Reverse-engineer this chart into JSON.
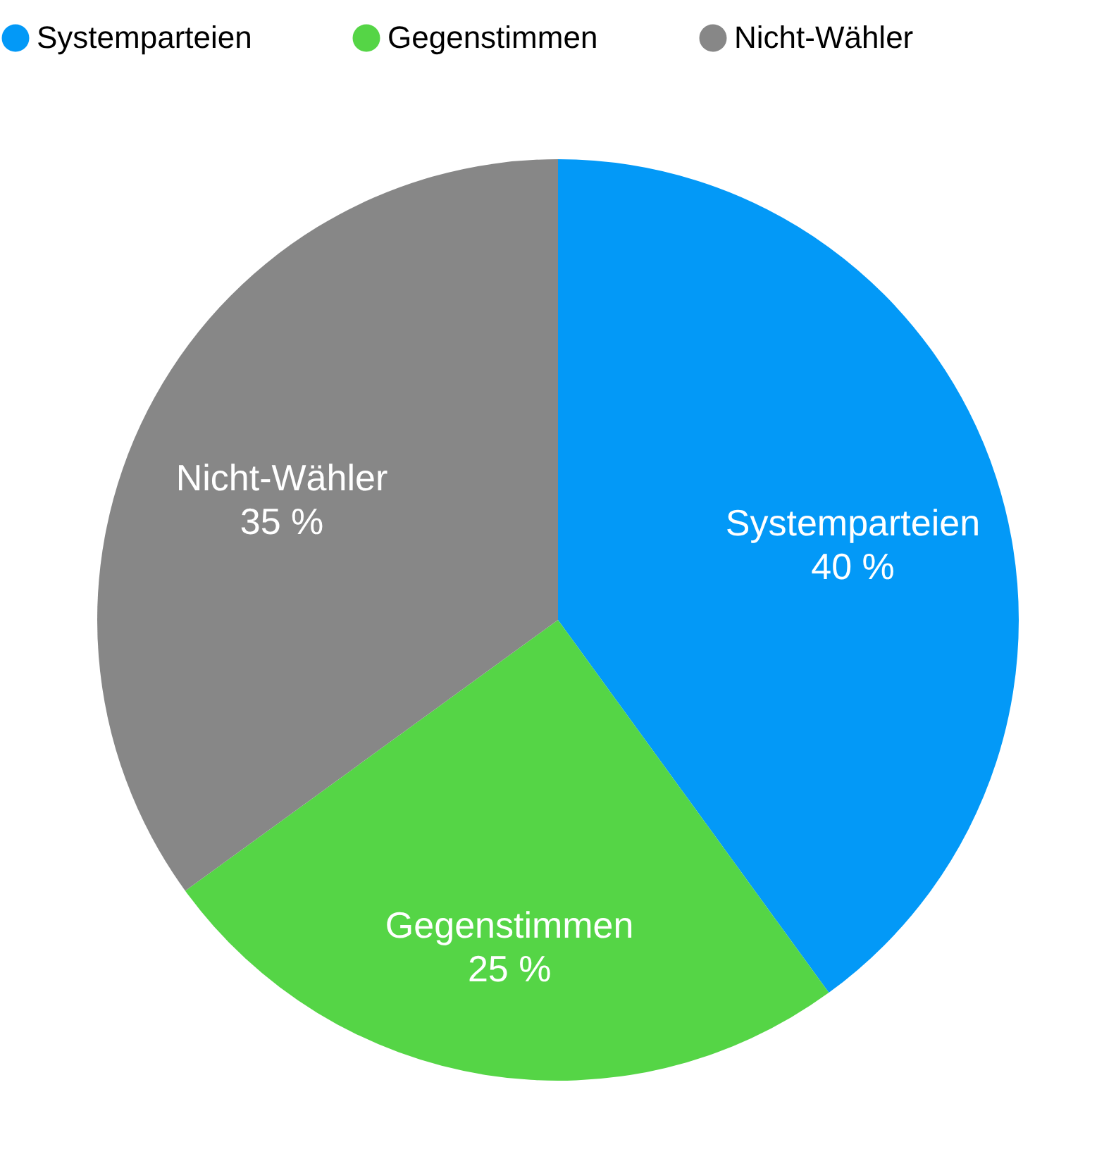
{
  "chart_data": {
    "type": "pie",
    "categories": [
      "Systemparteien",
      "Gegenstimmen",
      "Nicht-Wähler"
    ],
    "values": [
      40,
      25,
      35
    ],
    "colors": [
      "#0399f7",
      "#55d546",
      "#878787"
    ],
    "value_labels": [
      "40 %",
      "25 %",
      "35 %"
    ],
    "legend": "top"
  }
}
